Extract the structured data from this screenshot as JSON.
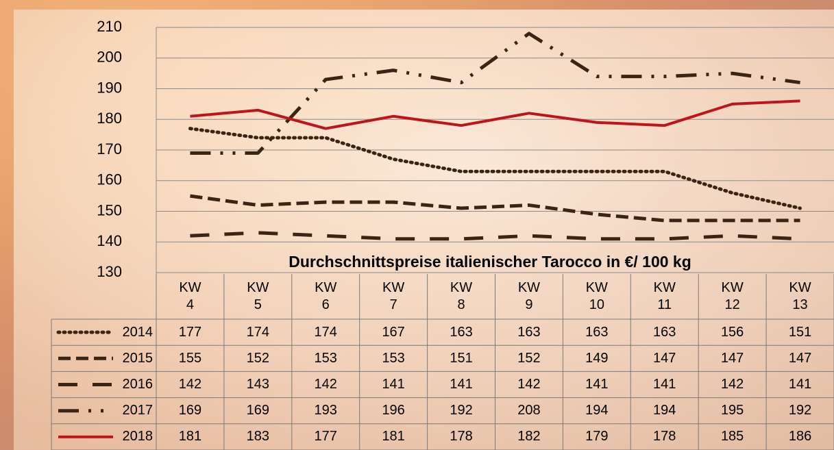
{
  "chart_data": {
    "type": "line",
    "title": "Durchschnittspreise italienischer Tarocco in €/ 100 kg",
    "categories": [
      "KW\n4",
      "KW\n5",
      "KW\n6",
      "KW\n7",
      "KW\n8",
      "KW\n9",
      "KW\n10",
      "KW\n11",
      "KW\n12",
      "KW\n13"
    ],
    "series": [
      {
        "name": "2014",
        "color": "#3b2414",
        "style": "dotted",
        "values": [
          177,
          174,
          174,
          167,
          163,
          163,
          163,
          163,
          156,
          151
        ]
      },
      {
        "name": "2015",
        "color": "#3b2414",
        "style": "dashed",
        "values": [
          155,
          152,
          153,
          153,
          151,
          152,
          149,
          147,
          147,
          147
        ]
      },
      {
        "name": "2016",
        "color": "#3b2414",
        "style": "long-dashed",
        "values": [
          142,
          143,
          142,
          141,
          141,
          142,
          141,
          141,
          142,
          141
        ]
      },
      {
        "name": "2017",
        "color": "#3b2414",
        "style": "dash-dot-dot",
        "values": [
          169,
          169,
          193,
          196,
          192,
          208,
          194,
          194,
          195,
          192
        ]
      },
      {
        "name": "2018",
        "color": "#c0141c",
        "style": "solid",
        "values": [
          181,
          183,
          177,
          181,
          178,
          182,
          179,
          178,
          185,
          186
        ]
      }
    ],
    "ylim": [
      130,
      210
    ],
    "yticks": [
      130,
      140,
      150,
      160,
      170,
      180,
      190,
      200,
      210
    ],
    "grid": true,
    "data_table": true
  }
}
